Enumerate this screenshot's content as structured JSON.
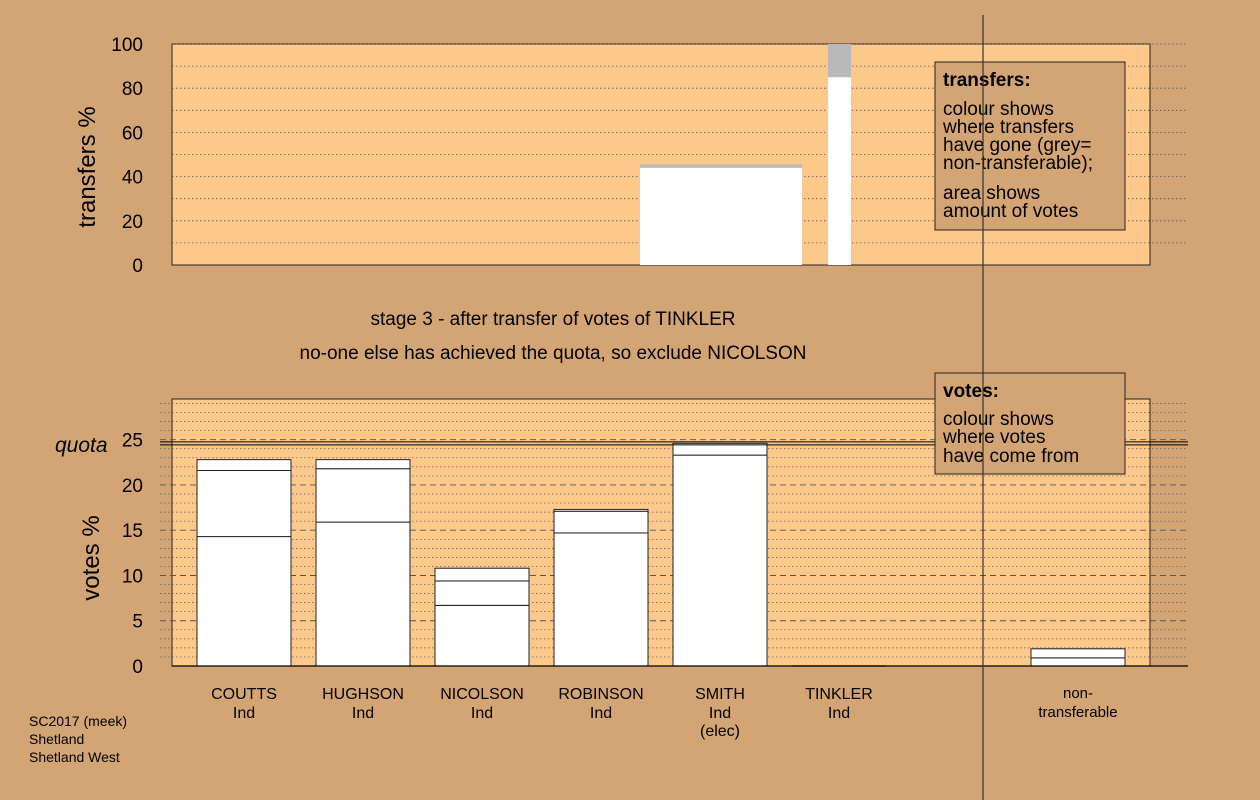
{
  "footer": {
    "line1": "SC2017 (meek)",
    "line2": "Shetland",
    "line3": "Shetland West"
  },
  "colors": {
    "background": "#d4a574",
    "plot_area": "#fdc98b",
    "bar": "#ffffff",
    "non_transferable": "#b9b9b9",
    "box": "#d4a574"
  },
  "chart_data": [
    {
      "type": "bar",
      "stacked": true,
      "ylabel": "transfers %",
      "ylim": [
        0,
        100
      ],
      "yticks": [
        0,
        20,
        40,
        60,
        80,
        100
      ],
      "legend_box": {
        "title": "transfers:",
        "text1": [
          "colour shows",
          "where transfers",
          "have gone (grey=",
          "non-transferable);"
        ],
        "text2": [
          "area shows",
          "amount of votes"
        ]
      },
      "transfers": [
        {
          "candidate": "NICOLSON",
          "transferable": 44,
          "non_transferable": 1.5,
          "relative_width": 1.0
        },
        {
          "candidate": "SMITH",
          "transferable": 85,
          "non_transferable": 15,
          "relative_width": 0.15
        }
      ]
    },
    {
      "type": "bar",
      "stacked": true,
      "ylabel": "votes %",
      "ylim": [
        0,
        29.5
      ],
      "yticks": [
        0,
        5,
        10,
        15,
        20,
        25
      ],
      "quota": 24.6,
      "quota_label": "quota",
      "legend_box": {
        "title": "votes:",
        "text": [
          "colour shows",
          "where votes",
          "have come from"
        ]
      },
      "categories": [
        {
          "name": "COUTTS",
          "party": "Ind",
          "note": ""
        },
        {
          "name": "HUGHSON",
          "party": "Ind",
          "note": ""
        },
        {
          "name": "NICOLSON",
          "party": "Ind",
          "note": ""
        },
        {
          "name": "ROBINSON",
          "party": "Ind",
          "note": ""
        },
        {
          "name": "SMITH",
          "party": "Ind",
          "note": "(elec)"
        },
        {
          "name": "TINKLER",
          "party": "Ind",
          "note": ""
        }
      ],
      "non_transferable_label": [
        "non-",
        "transferable"
      ],
      "segments": [
        [
          14.3,
          7.3,
          1.2
        ],
        [
          15.9,
          5.9,
          1.0
        ],
        [
          6.7,
          2.7,
          1.4
        ],
        [
          14.7,
          2.4,
          0.2
        ],
        [
          23.3,
          1.3
        ],
        [
          0
        ],
        [
          0.9,
          1.0
        ]
      ]
    }
  ],
  "caption": {
    "line1": "stage 3 - after transfer of votes of TINKLER",
    "line2": "no-one else has achieved the quota, so exclude NICOLSON"
  }
}
